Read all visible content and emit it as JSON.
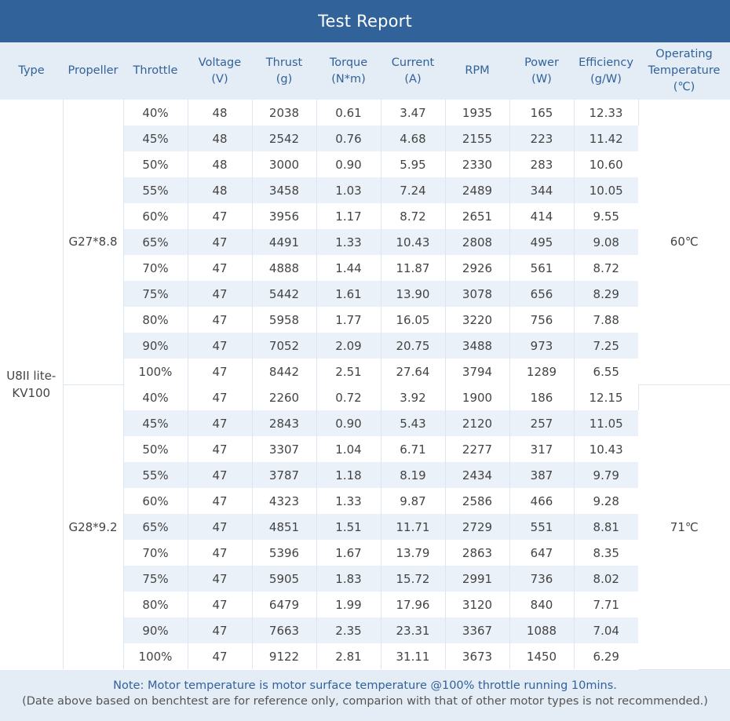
{
  "title": "Test Report",
  "headers": [
    [
      "Type"
    ],
    [
      "Propeller"
    ],
    [
      "Throttle"
    ],
    [
      "Voltage",
      "(V)"
    ],
    [
      "Thrust",
      "(g)"
    ],
    [
      "Torque",
      "(N*m)"
    ],
    [
      "Current",
      "(A)"
    ],
    [
      "RPM"
    ],
    [
      "Power",
      "(W)"
    ],
    [
      "Efficiency",
      "(g/W)"
    ],
    [
      "Operating",
      "Temperature",
      "(℃)"
    ]
  ],
  "motor_type": [
    "U8II lite-",
    "KV100"
  ],
  "groups": [
    {
      "propeller": "G27*8.8",
      "temperature": "60℃",
      "rows": [
        [
          "40%",
          "48",
          "2038",
          "0.61",
          "3.47",
          "1935",
          "165",
          "12.33"
        ],
        [
          "45%",
          "48",
          "2542",
          "0.76",
          "4.68",
          "2155",
          "223",
          "11.42"
        ],
        [
          "50%",
          "48",
          "3000",
          "0.90",
          "5.95",
          "2330",
          "283",
          "10.60"
        ],
        [
          "55%",
          "48",
          "3458",
          "1.03",
          "7.24",
          "2489",
          "344",
          "10.05"
        ],
        [
          "60%",
          "47",
          "3956",
          "1.17",
          "8.72",
          "2651",
          "414",
          "9.55"
        ],
        [
          "65%",
          "47",
          "4491",
          "1.33",
          "10.43",
          "2808",
          "495",
          "9.08"
        ],
        [
          "70%",
          "47",
          "4888",
          "1.44",
          "11.87",
          "2926",
          "561",
          "8.72"
        ],
        [
          "75%",
          "47",
          "5442",
          "1.61",
          "13.90",
          "3078",
          "656",
          "8.29"
        ],
        [
          "80%",
          "47",
          "5958",
          "1.77",
          "16.05",
          "3220",
          "756",
          "7.88"
        ],
        [
          "90%",
          "47",
          "7052",
          "2.09",
          "20.75",
          "3488",
          "973",
          "7.25"
        ],
        [
          "100%",
          "47",
          "8442",
          "2.51",
          "27.64",
          "3794",
          "1289",
          "6.55"
        ]
      ]
    },
    {
      "propeller": "G28*9.2",
      "temperature": "71℃",
      "rows": [
        [
          "40%",
          "47",
          "2260",
          "0.72",
          "3.92",
          "1900",
          "186",
          "12.15"
        ],
        [
          "45%",
          "47",
          "2843",
          "0.90",
          "5.43",
          "2120",
          "257",
          "11.05"
        ],
        [
          "50%",
          "47",
          "3307",
          "1.04",
          "6.71",
          "2277",
          "317",
          "10.43"
        ],
        [
          "55%",
          "47",
          "3787",
          "1.18",
          "8.19",
          "2434",
          "387",
          "9.79"
        ],
        [
          "60%",
          "47",
          "4323",
          "1.33",
          "9.87",
          "2586",
          "466",
          "9.28"
        ],
        [
          "65%",
          "47",
          "4851",
          "1.51",
          "11.71",
          "2729",
          "551",
          "8.81"
        ],
        [
          "70%",
          "47",
          "5396",
          "1.67",
          "13.79",
          "2863",
          "647",
          "8.35"
        ],
        [
          "75%",
          "47",
          "5905",
          "1.83",
          "15.72",
          "2991",
          "736",
          "8.02"
        ],
        [
          "80%",
          "47",
          "6479",
          "1.99",
          "17.96",
          "3120",
          "840",
          "7.71"
        ],
        [
          "90%",
          "47",
          "7663",
          "2.35",
          "23.31",
          "3367",
          "1088",
          "7.04"
        ],
        [
          "100%",
          "47",
          "9122",
          "2.81",
          "31.11",
          "3673",
          "1450",
          "6.29"
        ]
      ]
    }
  ],
  "footer": {
    "note": "Note: Motor temperature is motor surface temperature @100% throttle running 10mins.",
    "disclaimer": "(Date above based on benchtest are for reference only, comparion with that of other motor types is not recommended.)"
  },
  "colors": {
    "header_bar": "#31629a",
    "header_row_bg": "#e4ecf5",
    "stripe_bg": "#eaf1f8",
    "accent_text": "#31629a"
  }
}
